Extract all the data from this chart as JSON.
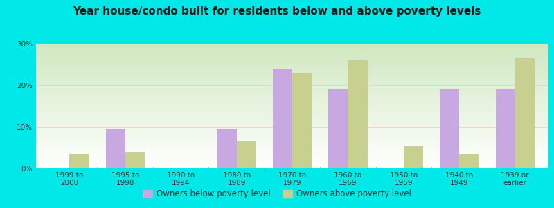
{
  "title": "Year house/condo built for residents below and above poverty levels",
  "categories": [
    "1999 to\n2000",
    "1995 to\n1998",
    "1990 to\n1994",
    "1980 to\n1989",
    "1970 to\n1979",
    "1960 to\n1969",
    "1950 to\n1959",
    "1940 to\n1949",
    "1939 or\nearlier"
  ],
  "below_poverty": [
    0,
    9.5,
    0,
    9.5,
    24,
    19,
    0,
    19,
    19
  ],
  "above_poverty": [
    3.5,
    4,
    0,
    6.5,
    23,
    26,
    5.5,
    3.5,
    26.5
  ],
  "below_color": "#c8a8e0",
  "above_color": "#c8d090",
  "background_outer": "#00e8e8",
  "background_inner_top": "#ffffff",
  "background_inner_bottom": "#d0e8c0",
  "title_color": "#1a1a1a",
  "axis_label_color": "#333333",
  "grid_color": "#e0e0d0",
  "ylim": [
    0,
    30
  ],
  "yticks": [
    0,
    10,
    20,
    30
  ],
  "legend_below_label": "Owners below poverty level",
  "legend_above_label": "Owners above poverty level",
  "bar_width": 0.35,
  "title_fontsize": 11,
  "tick_fontsize": 7.5,
  "legend_fontsize": 8.5
}
